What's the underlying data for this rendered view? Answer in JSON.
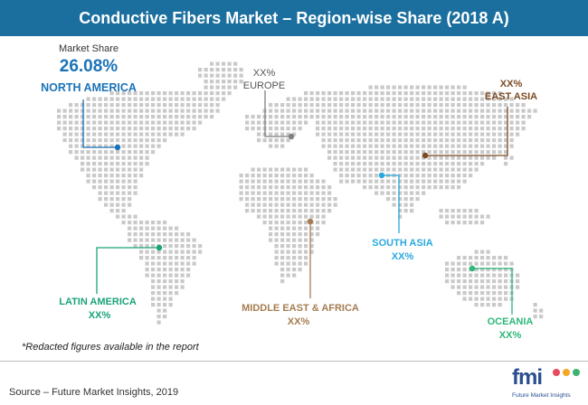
{
  "title": "Conductive Fibers Market – Region-wise Share (2018 A)",
  "chart_data": {
    "type": "map",
    "value_label": "Market Share",
    "regions": [
      {
        "name": "NORTH AMERICA",
        "value": "26.08%",
        "color": "#1a73b8"
      },
      {
        "name": "EUROPE",
        "value": "XX%",
        "color": "#808080"
      },
      {
        "name": "EAST ASIA",
        "value": "XX%",
        "color": "#7b4a22"
      },
      {
        "name": "SOUTH ASIA",
        "value": "XX%",
        "color": "#29a8df"
      },
      {
        "name": "LATIN AMERICA",
        "value": "XX%",
        "color": "#1aa37a"
      },
      {
        "name": "MIDDLE EAST & AFRICA",
        "value": "XX%",
        "color": "#a67c52"
      },
      {
        "name": "OCEANIA",
        "value": "XX%",
        "color": "#2eb87a"
      }
    ]
  },
  "footnote": "*Redacted figures available in the report",
  "source": "Source – Future Market Insights, 2019",
  "logo": {
    "text": "fmi",
    "subtitle": "Future Market Insights"
  },
  "colors": {
    "header": "#1b6f9f",
    "dots": "#c9c9c9"
  }
}
